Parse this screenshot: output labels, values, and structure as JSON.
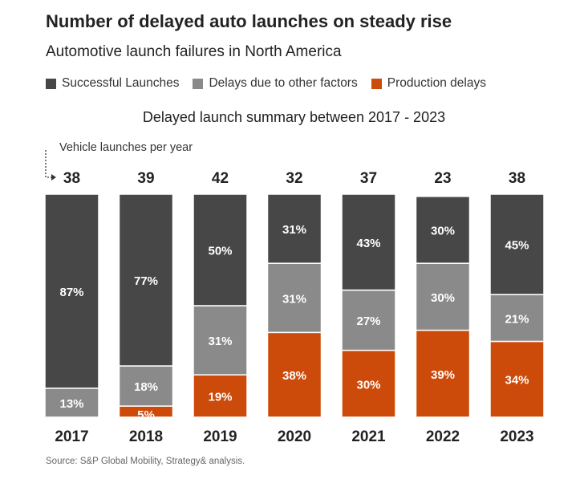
{
  "chart_data": {
    "type": "bar",
    "stacked": "percent",
    "title": "Number of delayed auto launches on steady rise",
    "subtitle": "Automotive launch failures in North America",
    "chart_title": "Delayed launch summary between 2017 - 2023",
    "total_label_note": "Vehicle launches per year",
    "categories": [
      "2017",
      "2018",
      "2019",
      "2020",
      "2021",
      "2022",
      "2023"
    ],
    "totals": [
      38,
      39,
      42,
      32,
      37,
      23,
      38
    ],
    "series": [
      {
        "name": "Production delays",
        "color": "#cc4a0a",
        "values": [
          0,
          5,
          19,
          38,
          30,
          39,
          34
        ]
      },
      {
        "name": "Delays due to other factors",
        "color": "#8a8a8a",
        "values": [
          13,
          18,
          31,
          31,
          27,
          30,
          21
        ]
      },
      {
        "name": "Successful Launches",
        "color": "#474747",
        "values": [
          87,
          77,
          50,
          31,
          43,
          30,
          45
        ]
      }
    ],
    "legend_order": [
      "Successful Launches",
      "Delays due to other factors",
      "Production delays"
    ],
    "value_suffix": "%",
    "ylim": [
      0,
      100
    ],
    "source": "Source: S&P Global Mobility, Strategy& analysis."
  }
}
